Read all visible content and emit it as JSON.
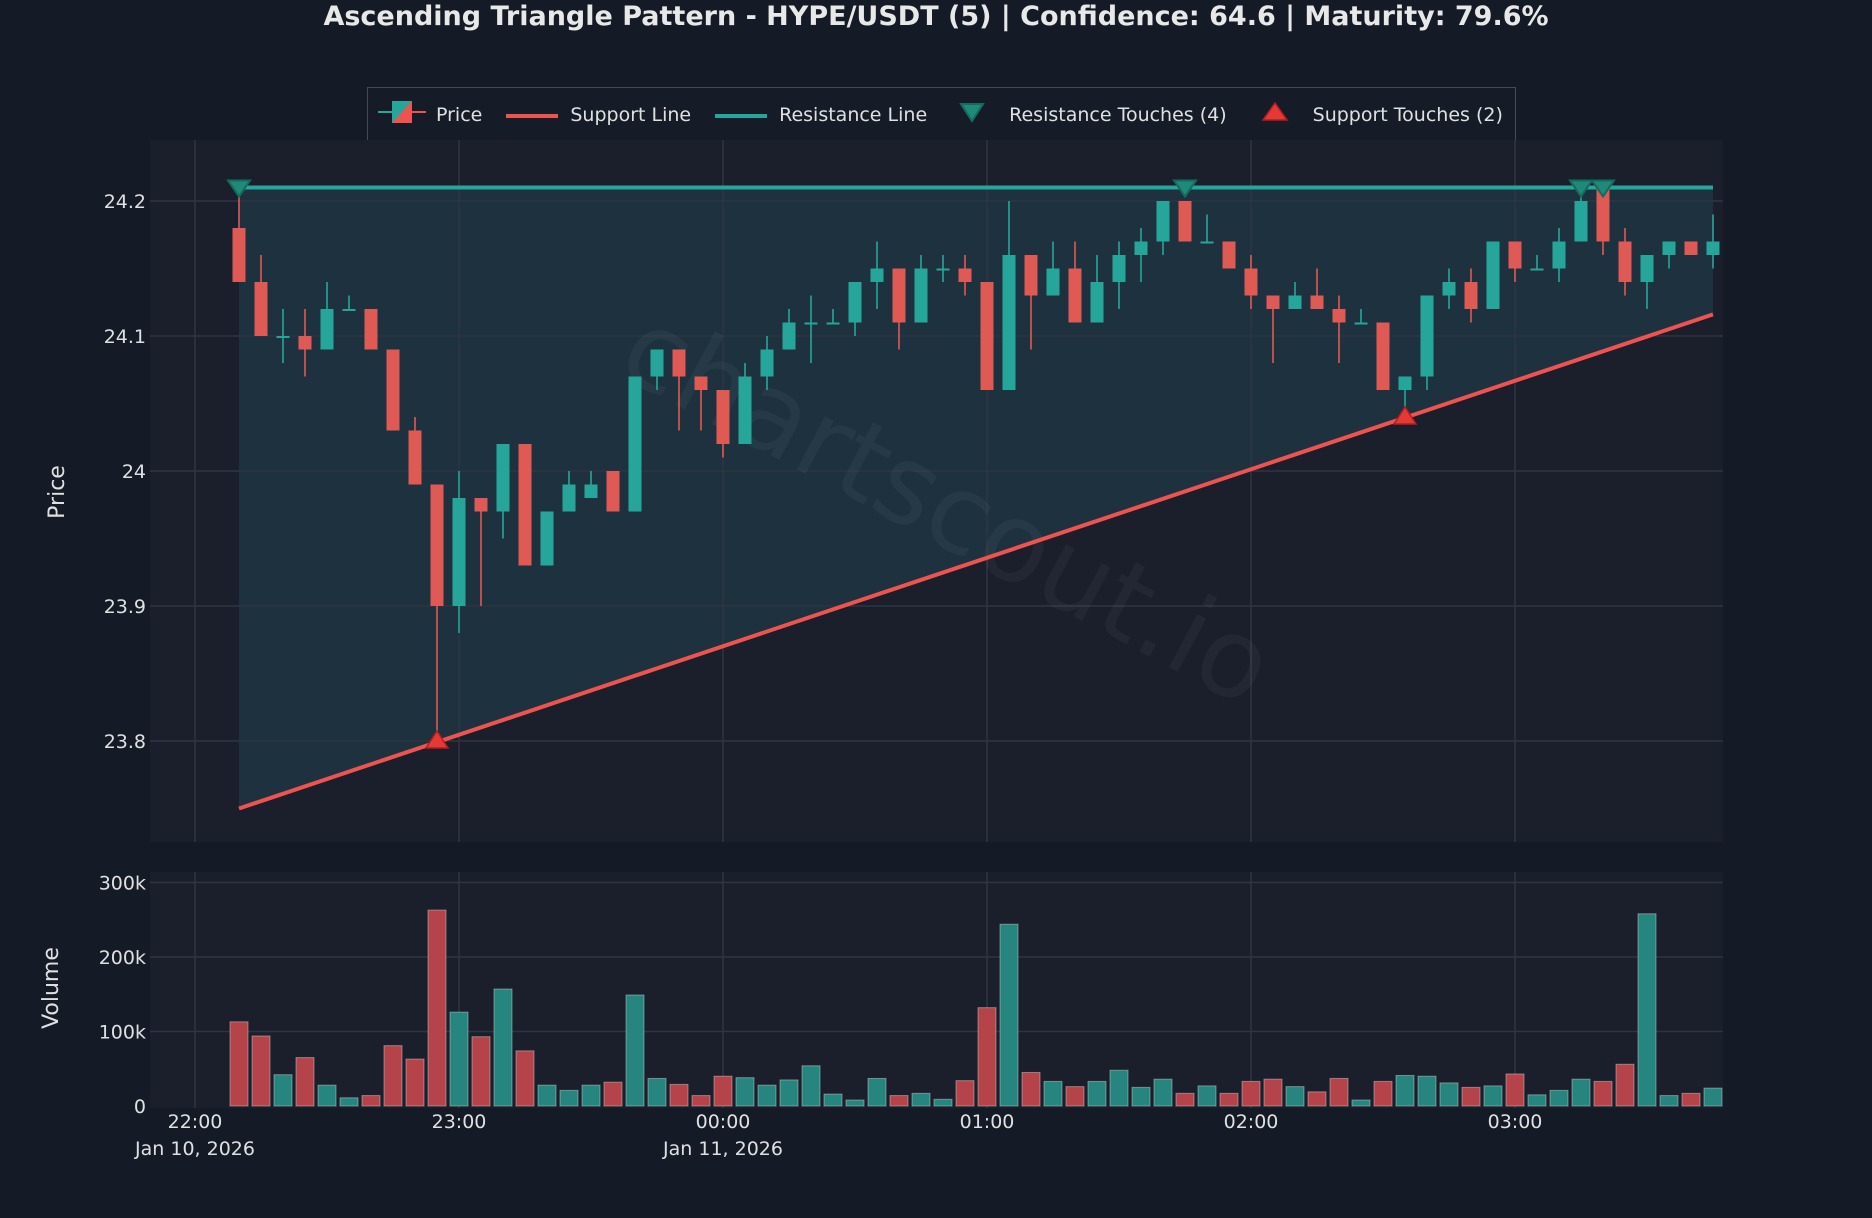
{
  "title": "Ascending Triangle Pattern - HYPE/USDT (5) | Confidence: 64.6 | Maturity: 79.6%",
  "watermark": "chartscout.io",
  "legend": [
    {
      "label": "Price",
      "icon": "candlestick-icon"
    },
    {
      "label": "Support Line",
      "icon": "red-line-icon"
    },
    {
      "label": "Resistance Line",
      "icon": "teal-line-icon"
    },
    {
      "label": "Resistance Touches (4)",
      "icon": "triangle-down-icon"
    },
    {
      "label": "Support Touches (2)",
      "icon": "triangle-up-icon"
    }
  ],
  "colors": {
    "background": "#151b26",
    "plot_bg": "#1a1f2b",
    "triangle_fill": "#1e3340",
    "up": "#26a69a",
    "down": "#e05a55",
    "volume_up": "#26867f",
    "volume_down": "#b5444a",
    "support": "#ef5350",
    "resistance": "#26a69a",
    "grid": "#2e3542"
  },
  "chart_data": [
    {
      "type": "candlestick",
      "title": "Ascending Triangle Pattern - HYPE/USDT (5) | Confidence: 64.6 | Maturity: 79.6%",
      "xlabel": "",
      "ylabel": "Price",
      "ylim": [
        23.725,
        24.245
      ],
      "yticks": [
        23.8,
        23.9,
        24,
        24.1,
        24.2
      ],
      "ytick_labels": [
        "23.8",
        "23.9",
        "24",
        "24.1",
        "24.2"
      ],
      "xticks": [
        "22:00",
        "23:00",
        "00:00",
        "01:00",
        "02:00",
        "03:00"
      ],
      "xtick_sublabels": [
        "Jan 10, 2026",
        "",
        "Jan 11, 2026",
        "",
        "",
        ""
      ],
      "x_start": "22:10",
      "interval_minutes": 5,
      "grid": true,
      "legend_position": "top",
      "candles": [
        {
          "t": "22:10",
          "o": 24.18,
          "h": 24.21,
          "l": 24.14,
          "c": 24.14
        },
        {
          "t": "22:15",
          "o": 24.14,
          "h": 24.16,
          "l": 24.1,
          "c": 24.1
        },
        {
          "t": "22:20",
          "o": 24.1,
          "h": 24.12,
          "l": 24.08,
          "c": 24.1
        },
        {
          "t": "22:25",
          "o": 24.1,
          "h": 24.12,
          "l": 24.07,
          "c": 24.09
        },
        {
          "t": "22:30",
          "o": 24.09,
          "h": 24.14,
          "l": 24.09,
          "c": 24.12
        },
        {
          "t": "22:35",
          "o": 24.12,
          "h": 24.13,
          "l": 24.12,
          "c": 24.12
        },
        {
          "t": "22:40",
          "o": 24.12,
          "h": 24.12,
          "l": 24.09,
          "c": 24.09
        },
        {
          "t": "22:45",
          "o": 24.09,
          "h": 24.09,
          "l": 24.03,
          "c": 24.03
        },
        {
          "t": "22:50",
          "o": 24.03,
          "h": 24.04,
          "l": 23.99,
          "c": 23.99
        },
        {
          "t": "22:55",
          "o": 23.99,
          "h": 23.99,
          "l": 23.8,
          "c": 23.9
        },
        {
          "t": "23:00",
          "o": 23.9,
          "h": 24.0,
          "l": 23.88,
          "c": 23.98
        },
        {
          "t": "23:05",
          "o": 23.98,
          "h": 23.98,
          "l": 23.9,
          "c": 23.97
        },
        {
          "t": "23:10",
          "o": 23.97,
          "h": 24.02,
          "l": 23.95,
          "c": 24.02
        },
        {
          "t": "23:15",
          "o": 24.02,
          "h": 24.02,
          "l": 23.93,
          "c": 23.93
        },
        {
          "t": "23:20",
          "o": 23.93,
          "h": 23.97,
          "l": 23.93,
          "c": 23.97
        },
        {
          "t": "23:25",
          "o": 23.97,
          "h": 24.0,
          "l": 23.97,
          "c": 23.99
        },
        {
          "t": "23:30",
          "o": 23.98,
          "h": 24.0,
          "l": 23.98,
          "c": 23.99
        },
        {
          "t": "23:35",
          "o": 24.0,
          "h": 24.0,
          "l": 23.97,
          "c": 23.97
        },
        {
          "t": "23:40",
          "o": 23.97,
          "h": 24.07,
          "l": 23.97,
          "c": 24.07
        },
        {
          "t": "23:45",
          "o": 24.07,
          "h": 24.09,
          "l": 24.06,
          "c": 24.09
        },
        {
          "t": "23:50",
          "o": 24.09,
          "h": 24.09,
          "l": 24.03,
          "c": 24.07
        },
        {
          "t": "23:55",
          "o": 24.07,
          "h": 24.07,
          "l": 24.03,
          "c": 24.06
        },
        {
          "t": "00:00",
          "o": 24.06,
          "h": 24.06,
          "l": 24.01,
          "c": 24.02
        },
        {
          "t": "00:05",
          "o": 24.02,
          "h": 24.08,
          "l": 24.02,
          "c": 24.07
        },
        {
          "t": "00:10",
          "o": 24.07,
          "h": 24.1,
          "l": 24.06,
          "c": 24.09
        },
        {
          "t": "00:15",
          "o": 24.09,
          "h": 24.12,
          "l": 24.09,
          "c": 24.11
        },
        {
          "t": "00:20",
          "o": 24.11,
          "h": 24.13,
          "l": 24.08,
          "c": 24.11
        },
        {
          "t": "00:25",
          "o": 24.11,
          "h": 24.12,
          "l": 24.11,
          "c": 24.11
        },
        {
          "t": "00:30",
          "o": 24.11,
          "h": 24.14,
          "l": 24.1,
          "c": 24.14
        },
        {
          "t": "00:35",
          "o": 24.14,
          "h": 24.17,
          "l": 24.12,
          "c": 24.15
        },
        {
          "t": "00:40",
          "o": 24.15,
          "h": 24.15,
          "l": 24.09,
          "c": 24.11
        },
        {
          "t": "00:45",
          "o": 24.11,
          "h": 24.16,
          "l": 24.11,
          "c": 24.15
        },
        {
          "t": "00:50",
          "o": 24.15,
          "h": 24.16,
          "l": 24.14,
          "c": 24.15
        },
        {
          "t": "00:55",
          "o": 24.15,
          "h": 24.16,
          "l": 24.13,
          "c": 24.14
        },
        {
          "t": "01:00",
          "o": 24.14,
          "h": 24.14,
          "l": 24.06,
          "c": 24.06
        },
        {
          "t": "01:05",
          "o": 24.06,
          "h": 24.2,
          "l": 24.06,
          "c": 24.16
        },
        {
          "t": "01:10",
          "o": 24.16,
          "h": 24.16,
          "l": 24.09,
          "c": 24.13
        },
        {
          "t": "01:15",
          "o": 24.13,
          "h": 24.17,
          "l": 24.13,
          "c": 24.15
        },
        {
          "t": "01:20",
          "o": 24.15,
          "h": 24.17,
          "l": 24.11,
          "c": 24.11
        },
        {
          "t": "01:25",
          "o": 24.11,
          "h": 24.16,
          "l": 24.11,
          "c": 24.14
        },
        {
          "t": "01:30",
          "o": 24.14,
          "h": 24.17,
          "l": 24.12,
          "c": 24.16
        },
        {
          "t": "01:35",
          "o": 24.16,
          "h": 24.18,
          "l": 24.14,
          "c": 24.17
        },
        {
          "t": "01:40",
          "o": 24.17,
          "h": 24.2,
          "l": 24.16,
          "c": 24.2
        },
        {
          "t": "01:45",
          "o": 24.2,
          "h": 24.2,
          "l": 24.17,
          "c": 24.17
        },
        {
          "t": "01:50",
          "o": 24.17,
          "h": 24.19,
          "l": 24.17,
          "c": 24.17
        },
        {
          "t": "01:55",
          "o": 24.17,
          "h": 24.17,
          "l": 24.15,
          "c": 24.15
        },
        {
          "t": "02:00",
          "o": 24.15,
          "h": 24.16,
          "l": 24.12,
          "c": 24.13
        },
        {
          "t": "02:05",
          "o": 24.13,
          "h": 24.13,
          "l": 24.08,
          "c": 24.12
        },
        {
          "t": "02:10",
          "o": 24.12,
          "h": 24.14,
          "l": 24.12,
          "c": 24.13
        },
        {
          "t": "02:15",
          "o": 24.13,
          "h": 24.15,
          "l": 24.12,
          "c": 24.12
        },
        {
          "t": "02:20",
          "o": 24.12,
          "h": 24.13,
          "l": 24.08,
          "c": 24.11
        },
        {
          "t": "02:25",
          "o": 24.11,
          "h": 24.12,
          "l": 24.11,
          "c": 24.11
        },
        {
          "t": "02:30",
          "o": 24.11,
          "h": 24.11,
          "l": 24.06,
          "c": 24.06
        },
        {
          "t": "02:35",
          "o": 24.06,
          "h": 24.07,
          "l": 24.04,
          "c": 24.07
        },
        {
          "t": "02:40",
          "o": 24.07,
          "h": 24.13,
          "l": 24.06,
          "c": 24.13
        },
        {
          "t": "02:45",
          "o": 24.13,
          "h": 24.15,
          "l": 24.12,
          "c": 24.14
        },
        {
          "t": "02:50",
          "o": 24.14,
          "h": 24.15,
          "l": 24.11,
          "c": 24.12
        },
        {
          "t": "02:55",
          "o": 24.12,
          "h": 24.17,
          "l": 24.12,
          "c": 24.17
        },
        {
          "t": "03:00",
          "o": 24.17,
          "h": 24.17,
          "l": 24.14,
          "c": 24.15
        },
        {
          "t": "03:05",
          "o": 24.15,
          "h": 24.16,
          "l": 24.15,
          "c": 24.15
        },
        {
          "t": "03:10",
          "o": 24.15,
          "h": 24.18,
          "l": 24.14,
          "c": 24.17
        },
        {
          "t": "03:15",
          "o": 24.17,
          "h": 24.21,
          "l": 24.17,
          "c": 24.2
        },
        {
          "t": "03:20",
          "o": 24.21,
          "h": 24.21,
          "l": 24.16,
          "c": 24.17
        },
        {
          "t": "03:25",
          "o": 24.17,
          "h": 24.18,
          "l": 24.13,
          "c": 24.14
        },
        {
          "t": "03:30",
          "o": 24.14,
          "h": 24.16,
          "l": 24.12,
          "c": 24.16
        },
        {
          "t": "03:35",
          "o": 24.16,
          "h": 24.17,
          "l": 24.15,
          "c": 24.17
        },
        {
          "t": "03:40",
          "o": 24.17,
          "h": 24.17,
          "l": 24.16,
          "c": 24.16
        },
        {
          "t": "03:45",
          "o": 24.16,
          "h": 24.19,
          "l": 24.15,
          "c": 24.17
        }
      ],
      "support_line": {
        "start": {
          "t": "22:10",
          "price": 23.75
        },
        "end": {
          "t": "03:45",
          "price": 24.116
        }
      },
      "resistance_line": {
        "price": 24.21,
        "start": "22:10",
        "end": "03:45"
      },
      "resistance_touches": [
        {
          "t": "22:10",
          "price": 24.21
        },
        {
          "t": "01:45",
          "price": 24.21
        },
        {
          "t": "03:15",
          "price": 24.21
        },
        {
          "t": "03:20",
          "price": 24.21
        }
      ],
      "support_touches": [
        {
          "t": "22:55",
          "price": 23.8
        },
        {
          "t": "02:35",
          "price": 24.04
        }
      ]
    },
    {
      "type": "bar",
      "ylabel": "Volume",
      "ylim": [
        0,
        315000
      ],
      "yticks": [
        0,
        100000,
        200000,
        300000
      ],
      "ytick_labels": [
        "0",
        "100k",
        "200k",
        "300k"
      ],
      "x_start": "22:10",
      "interval_minutes": 5,
      "values": [
        113000,
        94000,
        42000,
        65000,
        28000,
        11000,
        14000,
        81000,
        63000,
        263000,
        126000,
        93000,
        157000,
        74000,
        28000,
        21000,
        28000,
        32000,
        149000,
        37000,
        29000,
        14000,
        40000,
        38000,
        28000,
        35000,
        54000,
        16000,
        8000,
        37000,
        14000,
        17000,
        9000,
        34000,
        132000,
        244000,
        45000,
        33000,
        26000,
        33000,
        48000,
        25000,
        36000,
        17000,
        27000,
        17000,
        33000,
        36000,
        26000,
        19000,
        37000,
        8000,
        33000,
        41000,
        40000,
        31000,
        25000,
        27000,
        43000,
        15000,
        21000,
        36000,
        33000,
        56000,
        258000,
        14000,
        17000,
        24000
      ],
      "colors": [
        "down",
        "down",
        "up",
        "down",
        "up",
        "up",
        "down",
        "down",
        "down",
        "down",
        "up",
        "down",
        "up",
        "down",
        "up",
        "up",
        "up",
        "down",
        "up",
        "up",
        "down",
        "down",
        "down",
        "up",
        "up",
        "up",
        "up",
        "up",
        "up",
        "up",
        "down",
        "up",
        "up",
        "down",
        "down",
        "up",
        "down",
        "up",
        "down",
        "up",
        "up",
        "up",
        "up",
        "down",
        "up",
        "down",
        "down",
        "down",
        "up",
        "down",
        "down",
        "up",
        "down",
        "up",
        "up",
        "up",
        "down",
        "up",
        "down",
        "up",
        "up",
        "up",
        "down",
        "down",
        "up",
        "up",
        "down",
        "up"
      ]
    }
  ]
}
